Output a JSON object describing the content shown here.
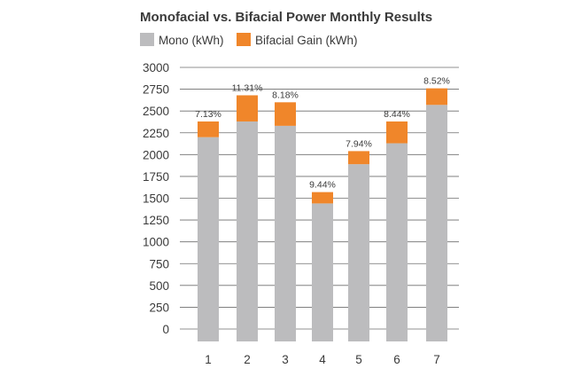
{
  "chart_data": {
    "type": "bar",
    "stacked": true,
    "title": "Monofacial vs. Bifacial Power Monthly Results",
    "xlabel": "",
    "ylabel": "",
    "categories": [
      "1",
      "2",
      "3",
      "4",
      "5",
      "6",
      "7"
    ],
    "series": [
      {
        "name": "Mono (kWh)",
        "color": "#bcbcbe",
        "values": [
          2200,
          2380,
          2330,
          1440,
          1890,
          2130,
          2570
        ]
      },
      {
        "name": "Bifacial Gain (kWh)",
        "color": "#f0862a",
        "values": [
          180,
          300,
          270,
          130,
          150,
          250,
          190
        ]
      }
    ],
    "data_labels": [
      "7.13%",
      "11.31%",
      "8.18%",
      "9.44%",
      "7.94%",
      "8.44%",
      "8.52%"
    ],
    "ylim": [
      0,
      3000
    ],
    "yticks": [
      0,
      250,
      500,
      750,
      1000,
      1250,
      1500,
      1750,
      2000,
      2250,
      2500,
      2750,
      3000
    ],
    "grid": true,
    "legend_position": "top-left"
  }
}
